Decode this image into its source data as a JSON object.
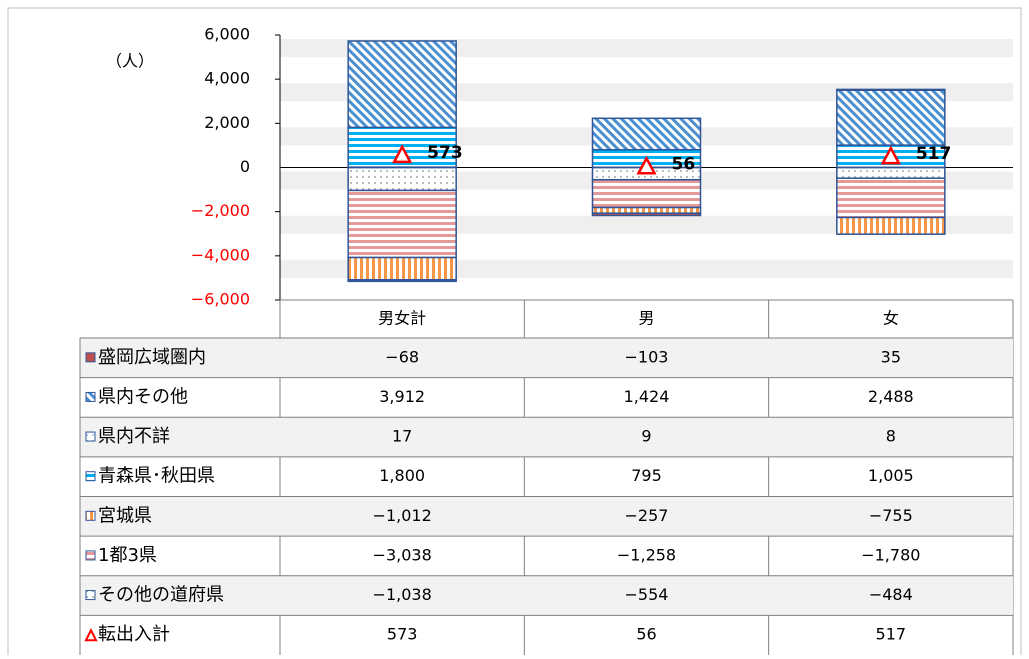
{
  "chart_data": {
    "type": "stacked-bar",
    "y_label": "（人）",
    "categories": [
      "男女計",
      "男",
      "女"
    ],
    "ylim": [
      -6000,
      6000
    ],
    "yticks": [
      {
        "value": 6000,
        "label": "6,000"
      },
      {
        "value": 4000,
        "label": "4,000"
      },
      {
        "value": 2000,
        "label": "2,000"
      },
      0,
      {
        "value": -2000,
        "label": "−2,000"
      },
      {
        "value": -4000,
        "label": "−4,000"
      },
      {
        "value": -6000,
        "label": "−6,000"
      }
    ],
    "series": [
      {
        "name": "盛岡広域圏内",
        "color": "#c0504d",
        "values": [
          -68,
          -103,
          35
        ],
        "value_labels": [
          "−68",
          "−103",
          "35"
        ]
      },
      {
        "name": "県内その他",
        "color": "#4a90d0",
        "values": [
          3912,
          1424,
          2488
        ],
        "value_labels": [
          "3,912",
          "1,424",
          "2,488"
        ]
      },
      {
        "name": "県内不詳",
        "color": "#9dc3e6",
        "values": [
          17,
          9,
          8
        ],
        "value_labels": [
          "17",
          "9",
          "8"
        ]
      },
      {
        "name": "青森県･秋田県",
        "color": "#00b0f0",
        "values": [
          1800,
          795,
          1005
        ],
        "value_labels": [
          "1,800",
          "795",
          "1,005"
        ]
      },
      {
        "name": "宮城県",
        "color": "#f79646",
        "values": [
          -1012,
          -257,
          -755
        ],
        "value_labels": [
          "−1,012",
          "−257",
          "−755"
        ]
      },
      {
        "name": "1都3県",
        "color": "#e59a9a",
        "values": [
          -3038,
          -1258,
          -1780
        ],
        "value_labels": [
          "−3,038",
          "−1,258",
          "−1,780"
        ]
      },
      {
        "name": "その他の道府県",
        "color": "#a6a6a6",
        "values": [
          -1038,
          -554,
          -484
        ],
        "value_labels": [
          "−1,038",
          "−554",
          "−484"
        ]
      },
      {
        "name": "転出入計",
        "type": "marker",
        "color": "#ff0000",
        "values": [
          573,
          56,
          517
        ],
        "value_labels": [
          "573",
          "56",
          "517"
        ]
      }
    ]
  }
}
